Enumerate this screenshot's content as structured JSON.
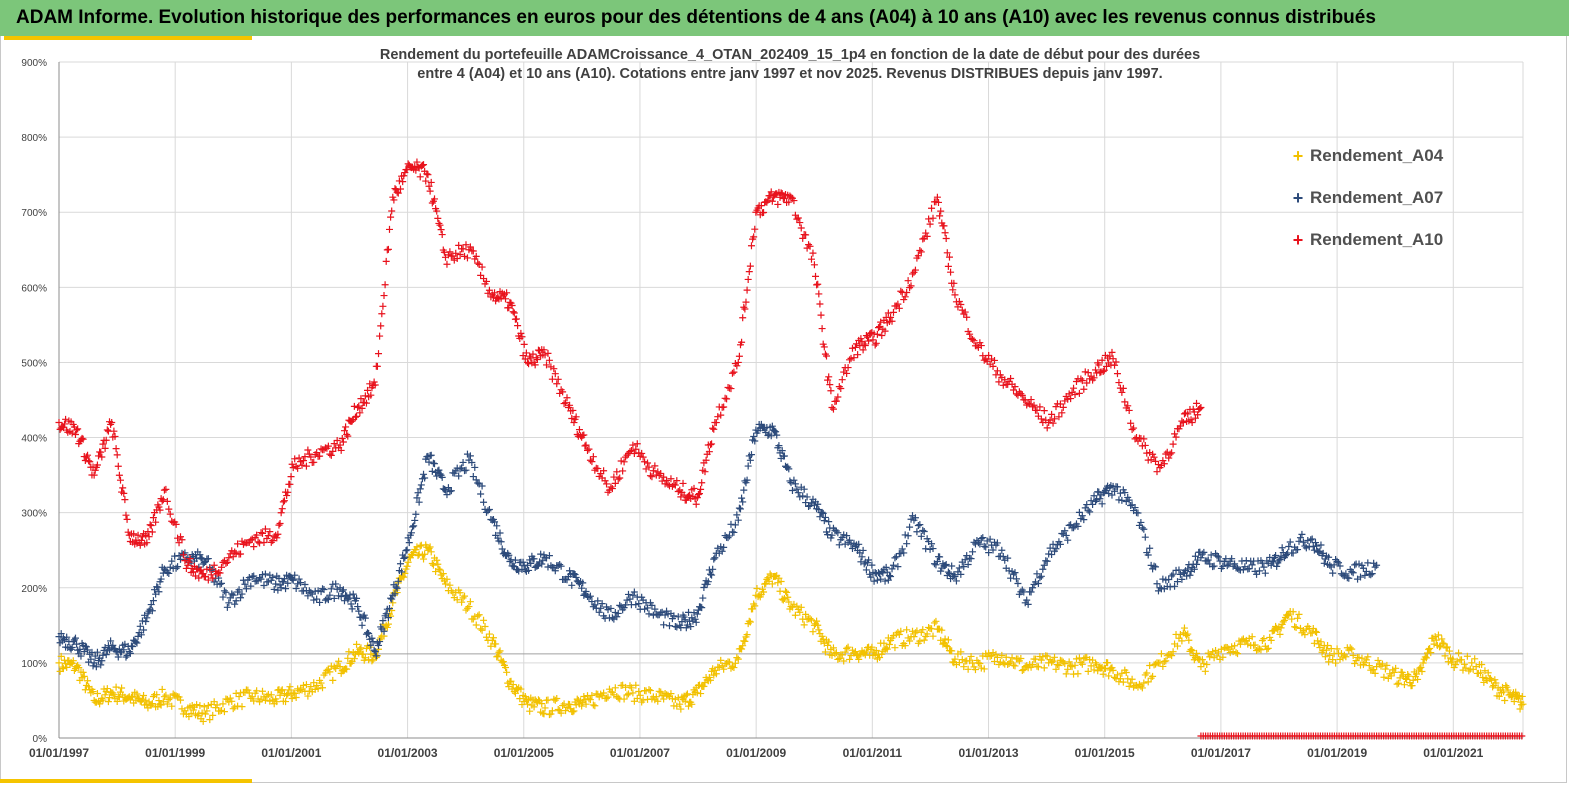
{
  "header": {
    "title": "ADAM Informe. Evolution historique des performances en euros pour des détentions de 4 ans (A04) à 10 ans (A10) avec les revenus connus distribués"
  },
  "colors": {
    "banner": "#7cc67a",
    "accent": "#f5c400",
    "a04": "#f2c100",
    "a07": "#2c4a7a",
    "a10": "#e8121c"
  },
  "chart_data": {
    "type": "scatter",
    "title_lines": [
      "Rendement du portefeuille ADAMCroissance_4_OTAN_202409_15_1p4  en fonction de la date de début pour des durées",
      "entre 4 (A04) et 10 ans (A10). Cotations entre janv 1997 et nov 2025. Revenus DISTRIBUES depuis janv 1997."
    ],
    "x_ticks": [
      "01/01/1997",
      "01/01/1999",
      "01/01/2001",
      "01/01/2003",
      "01/01/2005",
      "01/01/2007",
      "01/01/2009",
      "01/01/2011",
      "01/01/2013",
      "01/01/2015",
      "01/01/2017",
      "01/01/2019",
      "01/01/2021"
    ],
    "y_ticks": [
      "0%",
      "100%",
      "200%",
      "300%",
      "400%",
      "500%",
      "600%",
      "700%",
      "800%",
      "900%"
    ],
    "xlim": [
      1997.0,
      2022.0
    ],
    "ylim": [
      0,
      900
    ],
    "grid": true,
    "legend_position": "top-right",
    "reference_line": 112,
    "series": [
      {
        "name": "Rendement_A04",
        "marker": "+",
        "points": [
          [
            1997.0,
            100
          ],
          [
            1997.3,
            95
          ],
          [
            1997.6,
            50
          ],
          [
            1997.9,
            60
          ],
          [
            1998.2,
            55
          ],
          [
            1998.5,
            45
          ],
          [
            1998.8,
            55
          ],
          [
            1999.2,
            40
          ],
          [
            1999.5,
            32
          ],
          [
            1999.9,
            48
          ],
          [
            2000.3,
            55
          ],
          [
            2000.7,
            52
          ],
          [
            2001.0,
            60
          ],
          [
            2001.4,
            70
          ],
          [
            2001.8,
            95
          ],
          [
            2002.1,
            115
          ],
          [
            2002.4,
            110
          ],
          [
            2002.7,
            180
          ],
          [
            2003.0,
            240
          ],
          [
            2003.3,
            250
          ],
          [
            2003.6,
            205
          ],
          [
            2004.0,
            175
          ],
          [
            2004.4,
            130
          ],
          [
            2004.7,
            75
          ],
          [
            2005.0,
            45
          ],
          [
            2005.3,
            40
          ],
          [
            2005.7,
            45
          ],
          [
            2006.0,
            45
          ],
          [
            2006.4,
            65
          ],
          [
            2006.8,
            60
          ],
          [
            2007.2,
            55
          ],
          [
            2007.6,
            45
          ],
          [
            2007.9,
            60
          ],
          [
            2008.2,
            90
          ],
          [
            2008.6,
            105
          ],
          [
            2008.9,
            190
          ],
          [
            2009.2,
            215
          ],
          [
            2009.5,
            175
          ],
          [
            2009.9,
            150
          ],
          [
            2010.2,
            110
          ],
          [
            2010.6,
            115
          ],
          [
            2010.9,
            110
          ],
          [
            2011.2,
            130
          ],
          [
            2011.6,
            135
          ],
          [
            2012.0,
            145
          ],
          [
            2012.3,
            105
          ],
          [
            2012.7,
            100
          ],
          [
            2013.1,
            110
          ],
          [
            2013.5,
            95
          ],
          [
            2013.9,
            100
          ],
          [
            2014.3,
            95
          ],
          [
            2014.7,
            100
          ],
          [
            2015.0,
            90
          ],
          [
            2015.4,
            70
          ],
          [
            2015.8,
            100
          ],
          [
            2016.2,
            140
          ],
          [
            2016.5,
            95
          ],
          [
            2016.9,
            120
          ],
          [
            2017.3,
            125
          ],
          [
            2017.7,
            130
          ],
          [
            2018.0,
            165
          ],
          [
            2018.4,
            140
          ],
          [
            2018.7,
            110
          ],
          [
            2019.1,
            110
          ],
          [
            2019.5,
            95
          ],
          [
            2019.9,
            80
          ],
          [
            2020.2,
            78
          ],
          [
            2020.5,
            135
          ],
          [
            2020.8,
            105
          ],
          [
            2021.2,
            95
          ],
          [
            2021.5,
            70
          ],
          [
            2021.8,
            55
          ],
          [
            2022.0,
            45
          ]
        ]
      },
      {
        "name": "Rendement_A07",
        "marker": "+",
        "points": [
          [
            1997.0,
            135
          ],
          [
            1997.3,
            125
          ],
          [
            1997.6,
            100
          ],
          [
            1997.9,
            120
          ],
          [
            1998.2,
            115
          ],
          [
            1998.5,
            160
          ],
          [
            1998.8,
            225
          ],
          [
            1999.2,
            240
          ],
          [
            1999.5,
            235
          ],
          [
            1999.9,
            180
          ],
          [
            2000.3,
            215
          ],
          [
            2000.7,
            205
          ],
          [
            2001.0,
            210
          ],
          [
            2001.4,
            185
          ],
          [
            2001.8,
            200
          ],
          [
            2002.1,
            175
          ],
          [
            2002.4,
            115
          ],
          [
            2002.7,
            190
          ],
          [
            2003.0,
            270
          ],
          [
            2003.3,
            375
          ],
          [
            2003.6,
            330
          ],
          [
            2004.0,
            370
          ],
          [
            2004.4,
            290
          ],
          [
            2004.7,
            235
          ],
          [
            2005.0,
            230
          ],
          [
            2005.3,
            240
          ],
          [
            2005.7,
            215
          ],
          [
            2006.0,
            195
          ],
          [
            2006.4,
            160
          ],
          [
            2006.8,
            190
          ],
          [
            2007.2,
            165
          ],
          [
            2007.6,
            150
          ],
          [
            2007.9,
            165
          ],
          [
            2008.2,
            240
          ],
          [
            2008.6,
            290
          ],
          [
            2008.9,
            410
          ],
          [
            2009.2,
            410
          ],
          [
            2009.5,
            340
          ],
          [
            2009.9,
            310
          ],
          [
            2010.2,
            270
          ],
          [
            2010.6,
            255
          ],
          [
            2010.9,
            220
          ],
          [
            2011.2,
            215
          ],
          [
            2011.6,
            290
          ],
          [
            2012.0,
            235
          ],
          [
            2012.3,
            215
          ],
          [
            2012.7,
            260
          ],
          [
            2013.1,
            250
          ],
          [
            2013.5,
            180
          ],
          [
            2013.9,
            245
          ],
          [
            2014.3,
            280
          ],
          [
            2014.7,
            315
          ],
          [
            2015.0,
            335
          ],
          [
            2015.4,
            300
          ],
          [
            2015.8,
            200
          ],
          [
            2016.2,
            220
          ],
          [
            2016.5,
            240
          ],
          [
            2016.9,
            235
          ],
          [
            2017.3,
            225
          ],
          [
            2017.7,
            230
          ],
          [
            2018.0,
            255
          ],
          [
            2018.4,
            265
          ],
          [
            2018.7,
            230
          ],
          [
            2019.1,
            220
          ],
          [
            2019.5,
            230
          ]
        ]
      },
      {
        "name": "Rendement_A10",
        "marker": "+",
        "points": [
          [
            1997.0,
            420
          ],
          [
            1997.3,
            410
          ],
          [
            1997.6,
            350
          ],
          [
            1997.9,
            420
          ],
          [
            1998.2,
            270
          ],
          [
            1998.5,
            260
          ],
          [
            1998.8,
            330
          ],
          [
            1999.2,
            230
          ],
          [
            1999.5,
            215
          ],
          [
            1999.9,
            240
          ],
          [
            2000.3,
            265
          ],
          [
            2000.7,
            270
          ],
          [
            2001.0,
            360
          ],
          [
            2001.4,
            380
          ],
          [
            2001.8,
            390
          ],
          [
            2002.1,
            440
          ],
          [
            2002.4,
            470
          ],
          [
            2002.7,
            720
          ],
          [
            2003.0,
            760
          ],
          [
            2003.3,
            750
          ],
          [
            2003.6,
            640
          ],
          [
            2004.0,
            650
          ],
          [
            2004.4,
            590
          ],
          [
            2004.7,
            580
          ],
          [
            2005.0,
            500
          ],
          [
            2005.3,
            510
          ],
          [
            2005.7,
            440
          ],
          [
            2006.0,
            390
          ],
          [
            2006.4,
            330
          ],
          [
            2006.8,
            390
          ],
          [
            2007.2,
            350
          ],
          [
            2007.6,
            330
          ],
          [
            2007.9,
            320
          ],
          [
            2008.2,
            420
          ],
          [
            2008.6,
            500
          ],
          [
            2008.9,
            700
          ],
          [
            2009.2,
            720
          ],
          [
            2009.5,
            720
          ],
          [
            2009.9,
            630
          ],
          [
            2010.2,
            440
          ],
          [
            2010.6,
            520
          ],
          [
            2010.9,
            530
          ],
          [
            2011.2,
            560
          ],
          [
            2011.6,
            620
          ],
          [
            2012.0,
            720
          ],
          [
            2012.3,
            590
          ],
          [
            2012.7,
            520
          ],
          [
            2013.1,
            480
          ],
          [
            2013.5,
            450
          ],
          [
            2013.9,
            420
          ],
          [
            2014.3,
            460
          ],
          [
            2014.7,
            490
          ],
          [
            2015.0,
            505
          ],
          [
            2015.4,
            400
          ],
          [
            2015.8,
            360
          ],
          [
            2016.2,
            420
          ],
          [
            2016.5,
            440
          ]
        ]
      }
    ]
  }
}
